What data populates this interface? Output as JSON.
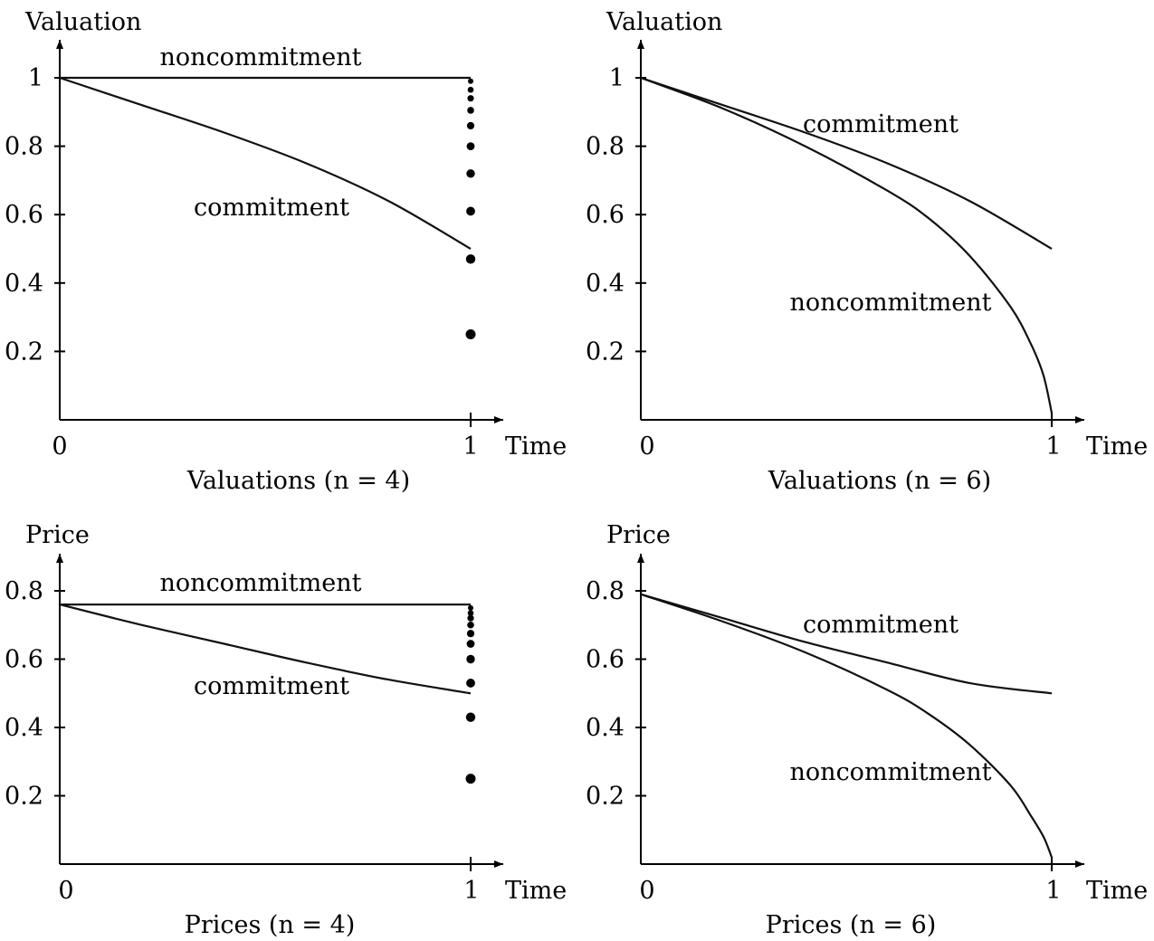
{
  "chart_data": [
    {
      "type": "line",
      "caption": "Valuations (n = 4)",
      "ylabel": "Valuation",
      "xlabel": "Time",
      "xlim": [
        0,
        1
      ],
      "ylim": [
        0,
        1
      ],
      "x_ticks": [
        "0",
        "1"
      ],
      "y_ticks": [
        0.2,
        0.4,
        0.6,
        0.8,
        1
      ],
      "y_tick_labels": [
        "0.2",
        "0.4",
        "0.6",
        "0.8",
        "1"
      ],
      "series": [
        {
          "name": "noncommitment",
          "x": [
            0,
            1
          ],
          "y": [
            1,
            1
          ]
        },
        {
          "name": "commitment",
          "x": [
            0,
            0.2,
            0.4,
            0.6,
            0.8,
            1
          ],
          "y": [
            1,
            0.92,
            0.84,
            0.75,
            0.64,
            0.5
          ]
        }
      ],
      "dots": [
        {
          "x": 1,
          "y": 0.99
        },
        {
          "x": 1,
          "y": 0.965
        },
        {
          "x": 1,
          "y": 0.94
        },
        {
          "x": 1,
          "y": 0.905
        },
        {
          "x": 1,
          "y": 0.86
        },
        {
          "x": 1,
          "y": 0.8
        },
        {
          "x": 1,
          "y": 0.72
        },
        {
          "x": 1,
          "y": 0.61
        },
        {
          "x": 1,
          "y": 0.47
        },
        {
          "x": 1,
          "y": 0.25
        }
      ]
    },
    {
      "type": "line",
      "caption": "Valuations (n = 6)",
      "ylabel": "Valuation",
      "xlabel": "Time",
      "xlim": [
        0,
        1
      ],
      "ylim": [
        0,
        1
      ],
      "x_ticks": [
        "0",
        "1"
      ],
      "y_ticks": [
        0.2,
        0.4,
        0.6,
        0.8,
        1
      ],
      "y_tick_labels": [
        "0.2",
        "0.4",
        "0.6",
        "0.8",
        "1"
      ],
      "series": [
        {
          "name": "commitment",
          "x": [
            0,
            0.2,
            0.4,
            0.6,
            0.8,
            1
          ],
          "y": [
            1,
            0.92,
            0.84,
            0.75,
            0.64,
            0.5
          ]
        },
        {
          "name": "noncommitment",
          "x": [
            0,
            0.2,
            0.4,
            0.6,
            0.7,
            0.8,
            0.9,
            0.95,
            0.98,
            1
          ],
          "y": [
            1,
            0.91,
            0.8,
            0.67,
            0.59,
            0.48,
            0.33,
            0.22,
            0.13,
            0.02
          ]
        }
      ],
      "dots": []
    },
    {
      "type": "line",
      "caption": "Prices (n = 4)",
      "ylabel": "Price",
      "xlabel": "Time",
      "xlim": [
        0,
        1
      ],
      "ylim": [
        0,
        0.9
      ],
      "x_ticks": [
        "0",
        "1"
      ],
      "y_ticks": [
        0.2,
        0.4,
        0.6,
        0.8
      ],
      "y_tick_labels": [
        "0.2",
        "0.4",
        "0.6",
        "0.8"
      ],
      "series": [
        {
          "name": "noncommitment",
          "x": [
            0,
            1
          ],
          "y": [
            0.76,
            0.76
          ]
        },
        {
          "name": "commitment",
          "x": [
            0,
            0.2,
            0.4,
            0.6,
            0.8,
            1
          ],
          "y": [
            0.76,
            0.7,
            0.645,
            0.59,
            0.54,
            0.5
          ]
        }
      ],
      "dots": [
        {
          "x": 1,
          "y": 0.75
        },
        {
          "x": 1,
          "y": 0.735
        },
        {
          "x": 1,
          "y": 0.72
        },
        {
          "x": 1,
          "y": 0.7
        },
        {
          "x": 1,
          "y": 0.675
        },
        {
          "x": 1,
          "y": 0.645
        },
        {
          "x": 1,
          "y": 0.6
        },
        {
          "x": 1,
          "y": 0.53
        },
        {
          "x": 1,
          "y": 0.43
        },
        {
          "x": 1,
          "y": 0.25
        }
      ]
    },
    {
      "type": "line",
      "caption": "Prices (n = 6)",
      "ylabel": "Price",
      "xlabel": "Time",
      "xlim": [
        0,
        1
      ],
      "ylim": [
        0,
        0.9
      ],
      "x_ticks": [
        "0",
        "1"
      ],
      "y_ticks": [
        0.2,
        0.4,
        0.6,
        0.8
      ],
      "y_tick_labels": [
        "0.2",
        "0.4",
        "0.6",
        "0.8"
      ],
      "series": [
        {
          "name": "commitment",
          "x": [
            0,
            0.2,
            0.4,
            0.6,
            0.8,
            1
          ],
          "y": [
            0.79,
            0.72,
            0.65,
            0.59,
            0.53,
            0.5
          ]
        },
        {
          "name": "noncommitment",
          "x": [
            0,
            0.2,
            0.4,
            0.6,
            0.7,
            0.8,
            0.9,
            0.95,
            0.98,
            1
          ],
          "y": [
            0.79,
            0.71,
            0.62,
            0.51,
            0.44,
            0.35,
            0.23,
            0.14,
            0.08,
            0.02
          ]
        }
      ],
      "dots": []
    }
  ]
}
